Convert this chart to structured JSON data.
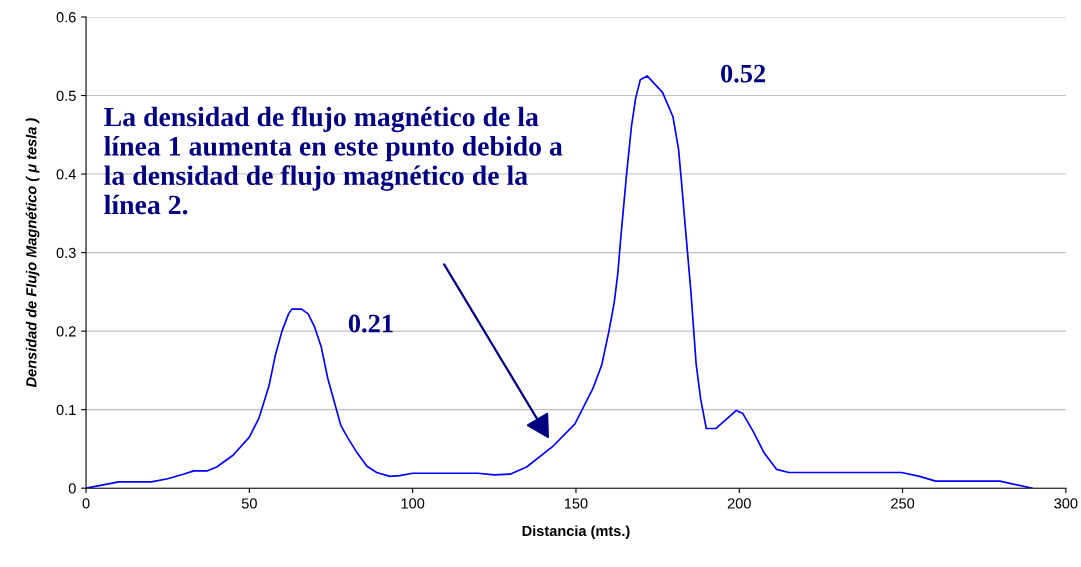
{
  "chart_data": {
    "type": "line",
    "xlabel": "Distancia (mts.)",
    "ylabel": "Densidad de Flujo Magnético ( μ tesla )",
    "series": [
      {
        "color": "#0000ff",
        "x": [
          0,
          10,
          20,
          25,
          30,
          33,
          37,
          40,
          45,
          50,
          53,
          56,
          58,
          60,
          62,
          63,
          66,
          68,
          70,
          72,
          74,
          76,
          78,
          80,
          83,
          86,
          89,
          93,
          96,
          100,
          120,
          125,
          130,
          134.9,
          143.1,
          149.7,
          155.2,
          157.9,
          160.1,
          161.7,
          162.8,
          163.9,
          165.5,
          167,
          168.3,
          169.7,
          171.8,
          176.5,
          179.7,
          181.4,
          182.4,
          183.6,
          185.2,
          186.8,
          188.2,
          189.9,
          192.8,
          196.1,
          199.1,
          201.1,
          204.3,
          207.6,
          211.4,
          215.2,
          249.7,
          255.2,
          260.1,
          279.8,
          289.6
        ],
        "values": [
          0,
          0.008,
          0.008,
          0.012,
          0.018,
          0.022,
          0.022,
          0.027,
          0.042,
          0.065,
          0.09,
          0.13,
          0.17,
          0.2,
          0.222,
          0.228,
          0.228,
          0.222,
          0.205,
          0.18,
          0.14,
          0.11,
          0.08,
          0.065,
          0.045,
          0.028,
          0.02,
          0.015,
          0.016,
          0.019,
          0.019,
          0.017,
          0.018,
          0.027,
          0.054,
          0.082,
          0.127,
          0.157,
          0.2,
          0.236,
          0.273,
          0.327,
          0.4,
          0.461,
          0.497,
          0.52,
          0.525,
          0.504,
          0.473,
          0.432,
          0.386,
          0.327,
          0.25,
          0.158,
          0.113,
          0.076,
          0.076,
          0.088,
          0.099,
          0.095,
          0.072,
          0.045,
          0.024,
          0.02,
          0.02,
          0.015,
          0.009,
          0.009,
          0
        ]
      }
    ],
    "xlim": [
      0,
      300
    ],
    "xticks": [
      0,
      50,
      100,
      150,
      200,
      250,
      300
    ],
    "ylim": [
      0,
      0.6
    ],
    "yticks": [
      {
        "value": 0,
        "label": "0"
      },
      0.1,
      0.2,
      0.3,
      0.4,
      0.5,
      0.6
    ],
    "grid": "y",
    "legend": false,
    "marker": "none",
    "line_style": "solid",
    "annotations": [
      "La densidad de flujo magnético de la línea 1 aumenta en este punto debido a la densidad de flujo magnético de la línea 2.",
      {
        "text": "0.21",
        "x": 64,
        "y": 0.228
      },
      {
        "text": "0.52",
        "x": 172,
        "y": 0.525
      }
    ]
  }
}
